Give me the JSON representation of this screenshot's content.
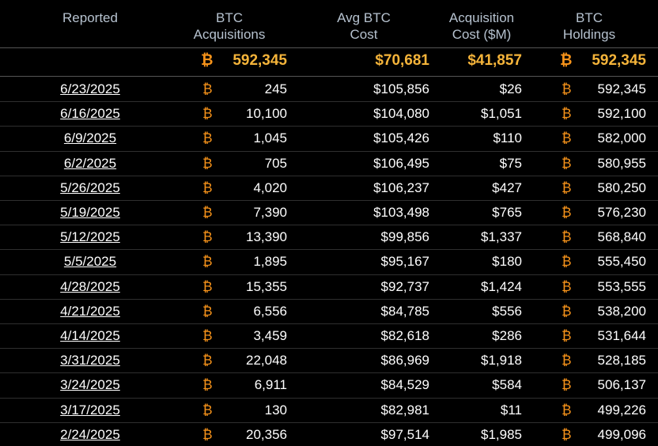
{
  "currency_symbol": "₿",
  "table": {
    "columns": [
      "Reported",
      "BTC\nAcquisitions",
      "Avg BTC\nCost",
      "Acquisition\nCost ($M)",
      "BTC\nHoldings"
    ],
    "totals": [
      "592,345",
      "$70,681",
      "$41,857",
      "592,345"
    ],
    "rows": [
      [
        "6/23/2025",
        "245",
        "$105,856",
        "$26",
        "592,345"
      ],
      [
        "6/16/2025",
        "10,100",
        "$104,080",
        "$1,051",
        "592,100"
      ],
      [
        "6/9/2025",
        "1,045",
        "$105,426",
        "$110",
        "582,000"
      ],
      [
        "6/2/2025",
        "705",
        "$106,495",
        "$75",
        "580,955"
      ],
      [
        "5/26/2025",
        "4,020",
        "$106,237",
        "$427",
        "580,250"
      ],
      [
        "5/19/2025",
        "7,390",
        "$103,498",
        "$765",
        "576,230"
      ],
      [
        "5/12/2025",
        "13,390",
        "$99,856",
        "$1,337",
        "568,840"
      ],
      [
        "5/5/2025",
        "1,895",
        "$95,167",
        "$180",
        "555,450"
      ],
      [
        "4/28/2025",
        "15,355",
        "$92,737",
        "$1,424",
        "553,555"
      ],
      [
        "4/21/2025",
        "6,556",
        "$84,785",
        "$556",
        "538,200"
      ],
      [
        "4/14/2025",
        "3,459",
        "$82,618",
        "$286",
        "531,644"
      ],
      [
        "3/31/2025",
        "22,048",
        "$86,969",
        "$1,918",
        "528,185"
      ],
      [
        "3/24/2025",
        "6,911",
        "$84,529",
        "$584",
        "506,137"
      ],
      [
        "3/17/2025",
        "130",
        "$82,981",
        "$11",
        "499,226"
      ],
      [
        "2/24/2025",
        "20,356",
        "$97,514",
        "$1,985",
        "499,096"
      ]
    ]
  }
}
